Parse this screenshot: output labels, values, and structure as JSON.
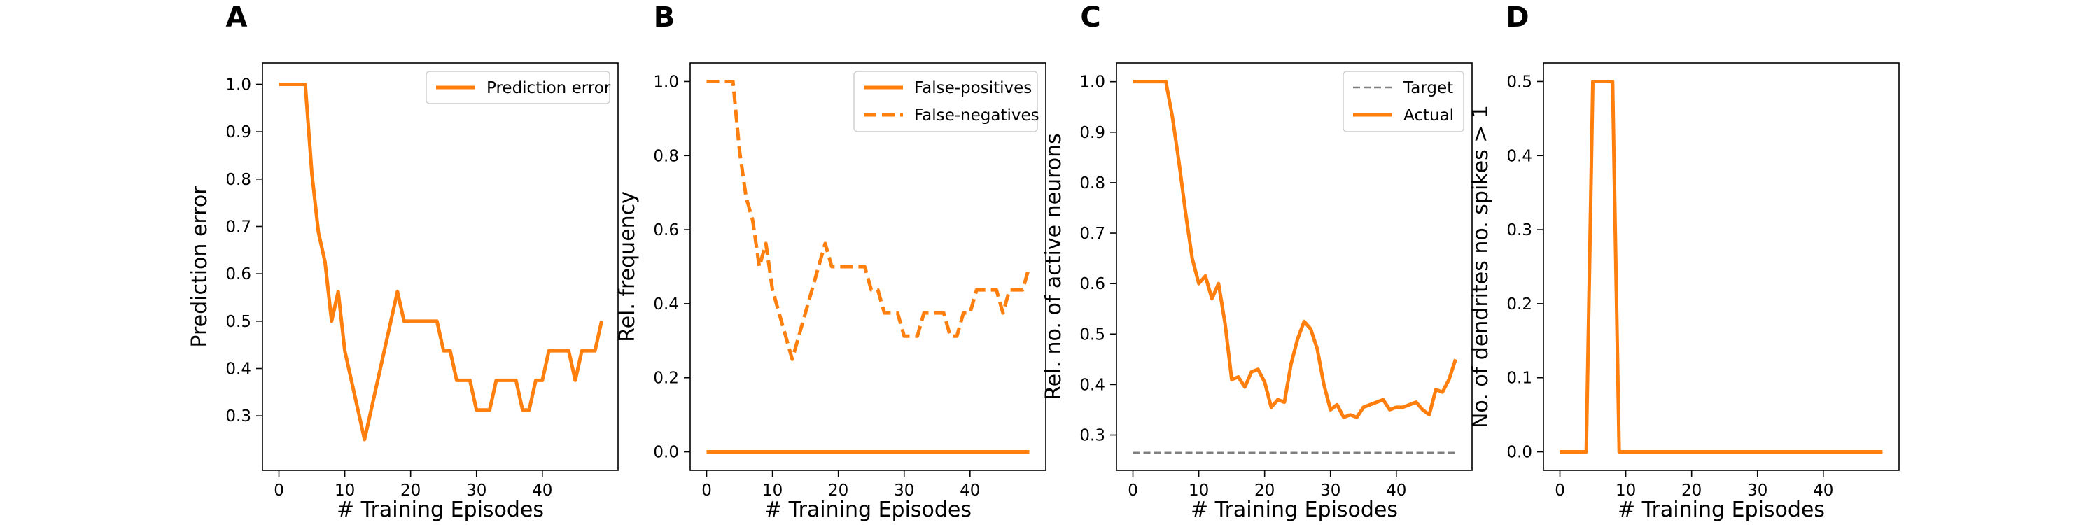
{
  "colors": {
    "series": "#ff7f0e",
    "target": "#808080",
    "axis": "#000000"
  },
  "chart_data": [
    {
      "panel": "A",
      "type": "line",
      "xlabel": "# Training Episodes",
      "ylabel": "Prediction error",
      "xlim": [
        -2.5,
        51.5
      ],
      "ylim": [
        0.185,
        1.045
      ],
      "xticks": [
        0,
        10,
        20,
        30,
        40
      ],
      "yticks": [
        0.3,
        0.4,
        0.5,
        0.6,
        0.7,
        0.8,
        0.9,
        1.0
      ],
      "legend_position": "top-right",
      "series": [
        {
          "name": "Prediction error",
          "style": "solid",
          "color": "#ff7f0e",
          "x": [
            0,
            1,
            2,
            3,
            4,
            5,
            6,
            7,
            8,
            9,
            10,
            11,
            12,
            13,
            14,
            15,
            16,
            17,
            18,
            19,
            20,
            21,
            22,
            23,
            24,
            25,
            26,
            27,
            28,
            29,
            30,
            31,
            32,
            33,
            34,
            35,
            36,
            37,
            38,
            39,
            40,
            41,
            42,
            43,
            44,
            45,
            46,
            47,
            48,
            49
          ],
          "y": [
            1.0,
            1.0,
            1.0,
            1.0,
            1.0,
            0.8125,
            0.6875,
            0.625,
            0.5,
            0.5625,
            0.4375,
            0.375,
            0.3125,
            0.25,
            0.3125,
            0.375,
            0.4375,
            0.5,
            0.5625,
            0.5,
            0.5,
            0.5,
            0.5,
            0.5,
            0.5,
            0.4375,
            0.4375,
            0.375,
            0.375,
            0.375,
            0.3125,
            0.3125,
            0.3125,
            0.375,
            0.375,
            0.375,
            0.375,
            0.3125,
            0.3125,
            0.375,
            0.375,
            0.4375,
            0.4375,
            0.4375,
            0.4375,
            0.375,
            0.4375,
            0.4375,
            0.4375,
            0.5
          ]
        }
      ]
    },
    {
      "panel": "B",
      "type": "line",
      "xlabel": "# Training Episodes",
      "ylabel": "Rel. frequency",
      "xlim": [
        -2.5,
        51.5
      ],
      "ylim": [
        -0.05,
        1.05
      ],
      "xticks": [
        0,
        10,
        20,
        30,
        40
      ],
      "yticks": [
        0.0,
        0.2,
        0.4,
        0.6,
        0.8,
        1.0
      ],
      "legend_position": "top-right",
      "series": [
        {
          "name": "False-positives",
          "style": "solid",
          "color": "#ff7f0e",
          "x": [
            0,
            49
          ],
          "y": [
            0.0,
            0.0
          ]
        },
        {
          "name": "False-negatives",
          "style": "dashed",
          "color": "#ff7f0e",
          "x": [
            0,
            1,
            2,
            3,
            4,
            5,
            6,
            7,
            8,
            9,
            10,
            11,
            12,
            13,
            14,
            15,
            16,
            17,
            18,
            19,
            20,
            21,
            22,
            23,
            24,
            25,
            26,
            27,
            28,
            29,
            30,
            31,
            32,
            33,
            34,
            35,
            36,
            37,
            38,
            39,
            40,
            41,
            42,
            43,
            44,
            45,
            46,
            47,
            48,
            49
          ],
          "y": [
            1.0,
            1.0,
            1.0,
            1.0,
            1.0,
            0.8125,
            0.6875,
            0.625,
            0.5,
            0.5625,
            0.4375,
            0.375,
            0.3125,
            0.25,
            0.3125,
            0.375,
            0.4375,
            0.5,
            0.5625,
            0.5,
            0.5,
            0.5,
            0.5,
            0.5,
            0.5,
            0.4375,
            0.4375,
            0.375,
            0.375,
            0.375,
            0.3125,
            0.3125,
            0.3125,
            0.375,
            0.375,
            0.375,
            0.375,
            0.3125,
            0.3125,
            0.375,
            0.375,
            0.4375,
            0.4375,
            0.4375,
            0.4375,
            0.375,
            0.4375,
            0.4375,
            0.4375,
            0.5
          ]
        }
      ]
    },
    {
      "panel": "C",
      "type": "line",
      "xlabel": "# Training Episodes",
      "ylabel": "Rel. no. of active neurons",
      "xlim": [
        -2.5,
        51.5
      ],
      "ylim": [
        0.23,
        1.037
      ],
      "xticks": [
        0,
        10,
        20,
        30,
        40
      ],
      "yticks": [
        0.3,
        0.4,
        0.5,
        0.6,
        0.7,
        0.8,
        0.9,
        1.0
      ],
      "legend_position": "top-right",
      "series": [
        {
          "name": "Target",
          "style": "dashed-thin",
          "color": "#808080",
          "x": [
            0,
            49
          ],
          "y": [
            0.265,
            0.265
          ]
        },
        {
          "name": "Actual",
          "style": "solid",
          "color": "#ff7f0e",
          "x": [
            0,
            1,
            2,
            3,
            4,
            5,
            6,
            7,
            8,
            9,
            10,
            11,
            12,
            13,
            14,
            15,
            16,
            17,
            18,
            19,
            20,
            21,
            22,
            23,
            24,
            25,
            26,
            27,
            28,
            29,
            30,
            31,
            32,
            33,
            34,
            35,
            36,
            37,
            38,
            39,
            40,
            41,
            42,
            43,
            44,
            45,
            46,
            47,
            48,
            49
          ],
          "y": [
            1.0,
            1.0,
            1.0,
            1.0,
            1.0,
            1.0,
            0.93,
            0.84,
            0.74,
            0.65,
            0.6,
            0.615,
            0.57,
            0.6,
            0.52,
            0.41,
            0.415,
            0.395,
            0.425,
            0.43,
            0.405,
            0.355,
            0.37,
            0.365,
            0.44,
            0.49,
            0.525,
            0.51,
            0.47,
            0.4,
            0.35,
            0.36,
            0.335,
            0.34,
            0.335,
            0.355,
            0.36,
            0.365,
            0.37,
            0.35,
            0.355,
            0.355,
            0.36,
            0.365,
            0.35,
            0.34,
            0.39,
            0.385,
            0.41,
            0.45
          ]
        }
      ]
    },
    {
      "panel": "D",
      "type": "line",
      "xlabel": "# Training Episodes",
      "ylabel": "No. of dendrites no. spikes > 1",
      "xlim": [
        -2.5,
        51.5
      ],
      "ylim": [
        -0.025,
        0.525
      ],
      "xticks": [
        0,
        10,
        20,
        30,
        40
      ],
      "yticks": [
        0.0,
        0.1,
        0.2,
        0.3,
        0.4,
        0.5
      ],
      "legend_position": "none",
      "series": [
        {
          "style": "solid",
          "color": "#ff7f0e",
          "x": [
            0,
            1,
            2,
            3,
            4,
            5,
            6,
            7,
            8,
            9,
            10,
            49
          ],
          "y": [
            0.0,
            0.0,
            0.0,
            0.0,
            0.0,
            0.5,
            0.5,
            0.5,
            0.5,
            0.0,
            0.0,
            0.0
          ]
        }
      ]
    }
  ]
}
